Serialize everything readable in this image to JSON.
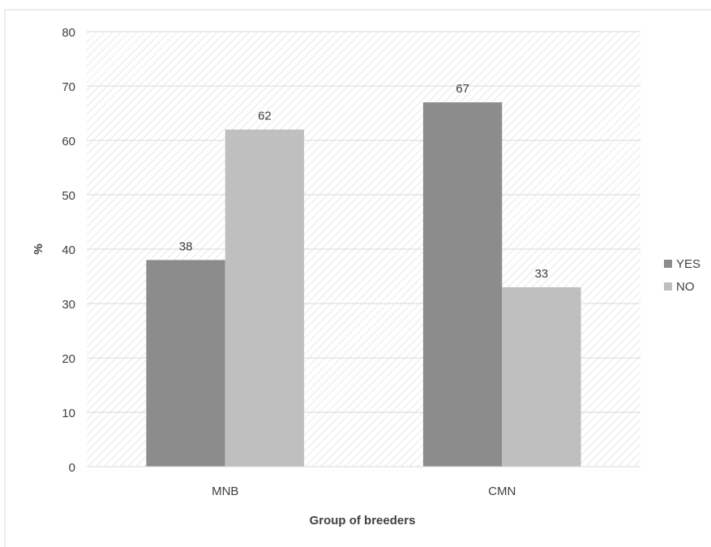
{
  "chart_data": {
    "type": "bar",
    "categories": [
      "MNB",
      "CMN"
    ],
    "series": [
      {
        "name": "YES",
        "values": [
          38,
          67
        ],
        "color": "#8c8c8c"
      },
      {
        "name": "NO",
        "values": [
          62,
          33
        ],
        "color": "#bfbfbf"
      }
    ],
    "data_labels": [
      [
        "38",
        "67"
      ],
      [
        "62",
        "33"
      ]
    ],
    "xlabel": "Group of breeders",
    "ylabel": "%",
    "ylim": [
      0,
      80
    ],
    "yticks": [
      0,
      10,
      20,
      30,
      40,
      50,
      60,
      70,
      80
    ],
    "grid": true,
    "legend_position": "right",
    "background": "diagonal-hatch"
  }
}
